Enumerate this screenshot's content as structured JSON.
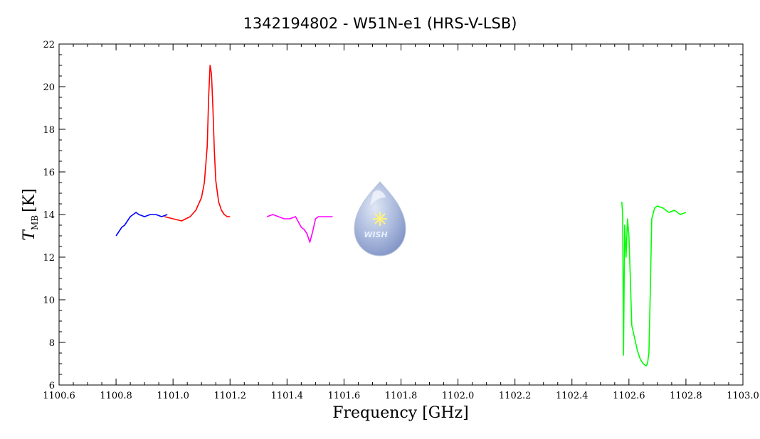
{
  "chart_data": {
    "type": "line",
    "title": "1342194802 - W51N-e1 (HRS-V-LSB)",
    "xlabel": "Frequency [GHz]",
    "ylabel_main": "T",
    "ylabel_sub": "MB",
    "ylabel_unit": "[K]",
    "xlim": [
      1100.6,
      1103.0
    ],
    "ylim": [
      6,
      22
    ],
    "x_ticks": [
      "1100.6",
      "1100.8",
      "1101.0",
      "1101.2",
      "1101.4",
      "1101.6",
      "1101.8",
      "1102.0",
      "1102.2",
      "1102.4",
      "1102.6",
      "1102.8",
      "1103.0"
    ],
    "y_ticks": [
      "6",
      "8",
      "10",
      "12",
      "14",
      "16",
      "18",
      "20",
      "22"
    ],
    "grid": false,
    "series": [
      {
        "color": "#0000ff",
        "x": [
          1100.8,
          1100.81,
          1100.82,
          1100.83,
          1100.84,
          1100.85,
          1100.86,
          1100.87,
          1100.88,
          1100.9,
          1100.92,
          1100.94,
          1100.96,
          1100.98
        ],
        "y": [
          13.0,
          13.2,
          13.4,
          13.5,
          13.7,
          13.9,
          14.0,
          14.1,
          14.0,
          13.9,
          14.0,
          14.0,
          13.9,
          14.0
        ]
      },
      {
        "color": "#ff0000",
        "x": [
          1100.97,
          1101.0,
          1101.03,
          1101.06,
          1101.08,
          1101.1,
          1101.11,
          1101.12,
          1101.125,
          1101.13,
          1101.135,
          1101.14,
          1101.145,
          1101.15,
          1101.16,
          1101.17,
          1101.18,
          1101.19,
          1101.2
        ],
        "y": [
          13.9,
          13.8,
          13.7,
          13.9,
          14.2,
          14.8,
          15.5,
          17.2,
          19.5,
          21.0,
          20.6,
          19.0,
          17.0,
          15.6,
          14.6,
          14.2,
          14.0,
          13.9,
          13.9
        ]
      },
      {
        "color": "#ff00ff",
        "x": [
          1101.33,
          1101.35,
          1101.37,
          1101.39,
          1101.41,
          1101.43,
          1101.45,
          1101.46,
          1101.47,
          1101.48,
          1101.49,
          1101.5,
          1101.51,
          1101.53,
          1101.56
        ],
        "y": [
          13.9,
          14.0,
          13.9,
          13.8,
          13.8,
          13.9,
          13.4,
          13.3,
          13.1,
          12.7,
          13.2,
          13.8,
          13.9,
          13.9,
          13.9
        ]
      },
      {
        "color": "#00ff00",
        "x": [
          1102.575,
          1102.578,
          1102.581,
          1102.585,
          1102.59,
          1102.595,
          1102.6,
          1102.605,
          1102.61,
          1102.62,
          1102.63,
          1102.64,
          1102.65,
          1102.66,
          1102.665,
          1102.67,
          1102.675,
          1102.68,
          1102.69,
          1102.7,
          1102.72,
          1102.74,
          1102.76,
          1102.78,
          1102.8
        ],
        "y": [
          14.6,
          14.0,
          7.4,
          13.5,
          12.0,
          13.8,
          13.0,
          11.0,
          8.8,
          8.2,
          7.6,
          7.2,
          7.0,
          6.9,
          7.0,
          7.5,
          10.5,
          13.8,
          14.3,
          14.4,
          14.3,
          14.1,
          14.2,
          14.0,
          14.1
        ]
      }
    ]
  },
  "logo": {
    "text": "WISH"
  }
}
